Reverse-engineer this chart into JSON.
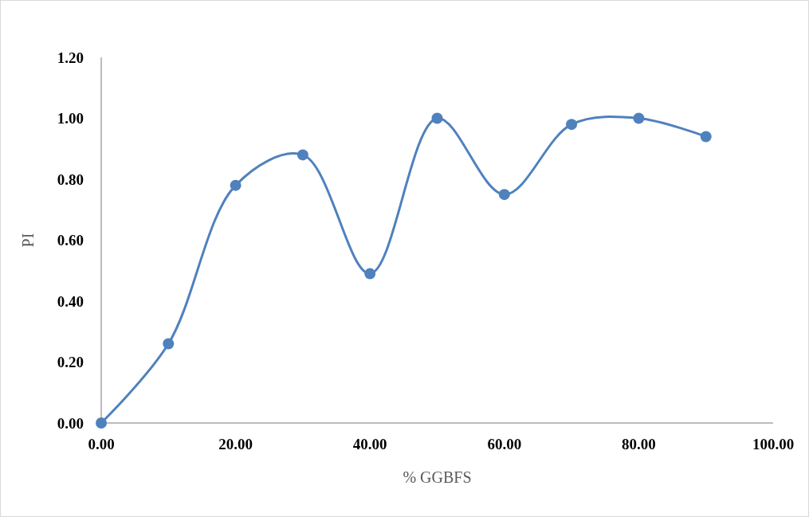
{
  "chart_data": {
    "type": "line",
    "xlabel": "% GGBFS",
    "ylabel": "PI",
    "x": [
      0,
      10,
      20,
      30,
      40,
      50,
      60,
      70,
      80,
      90
    ],
    "series": [
      {
        "color": "#4f81bd",
        "values": [
          0.0,
          0.26,
          0.78,
          0.88,
          0.49,
          1.0,
          0.75,
          0.98,
          1.0,
          0.94
        ]
      }
    ],
    "xlim": [
      0,
      100
    ],
    "xticks": [
      {
        "value": 0,
        "label": "0.00"
      },
      {
        "value": 20,
        "label": "20.00"
      },
      {
        "value": 40,
        "label": "40.00"
      },
      {
        "value": 60,
        "label": "60.00"
      },
      {
        "value": 80,
        "label": "80.00"
      },
      {
        "value": 100,
        "label": "100.00"
      }
    ],
    "ylim": [
      0,
      1.2
    ],
    "yticks": [
      {
        "value": 0,
        "label": "0.00"
      },
      {
        "value": 0.2,
        "label": "0.20"
      },
      {
        "value": 0.4,
        "label": "0.40"
      },
      {
        "value": 0.6,
        "label": "0.60"
      },
      {
        "value": 0.8,
        "label": "0.80"
      },
      {
        "value": 1,
        "label": "1.00"
      },
      {
        "value": 1.2,
        "label": "1.20"
      }
    ],
    "grid": false,
    "marker": "circle",
    "line_style": "solid"
  }
}
